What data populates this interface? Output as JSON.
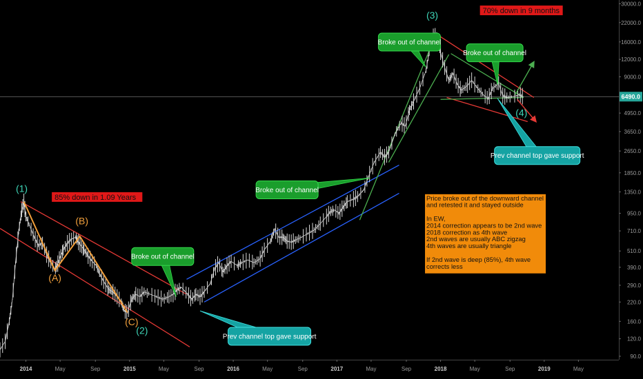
{
  "chart_data": {
    "type": "line",
    "scale": "log",
    "y_ticks": [
      90,
      120,
      160,
      220,
      290,
      390,
      510,
      710,
      950,
      1350,
      1850,
      2650,
      3650,
      4950,
      6490,
      9000,
      12000,
      16000,
      22000,
      30000
    ],
    "y_tick_labels": [
      "90.0",
      "120.0",
      "160.0",
      "220.0",
      "290.0",
      "390.0",
      "510.0",
      "710.0",
      "950.0",
      "1350.0",
      "1850.0",
      "2650.0",
      "3650.0",
      "4950.0",
      "",
      "9000.0",
      "12000.0",
      "16000.0",
      "22000.0",
      "30000.0"
    ],
    "ylim": [
      85,
      30500
    ],
    "x_ticks": [
      {
        "label": "2014",
        "t": 0.0,
        "bold": true
      },
      {
        "label": "May",
        "t": 0.33,
        "bold": false
      },
      {
        "label": "Sep",
        "t": 0.67,
        "bold": false
      },
      {
        "label": "2015",
        "t": 1.0,
        "bold": true
      },
      {
        "label": "May",
        "t": 1.33,
        "bold": false
      },
      {
        "label": "Sep",
        "t": 1.67,
        "bold": false
      },
      {
        "label": "2016",
        "t": 2.0,
        "bold": true
      },
      {
        "label": "May",
        "t": 2.33,
        "bold": false
      },
      {
        "label": "Sep",
        "t": 2.67,
        "bold": false
      },
      {
        "label": "2017",
        "t": 3.0,
        "bold": true
      },
      {
        "label": "May",
        "t": 3.33,
        "bold": false
      },
      {
        "label": "Sep",
        "t": 3.67,
        "bold": false
      },
      {
        "label": "2018",
        "t": 4.0,
        "bold": true
      },
      {
        "label": "May",
        "t": 4.33,
        "bold": false
      },
      {
        "label": "Sep",
        "t": 4.67,
        "bold": false
      },
      {
        "label": "2019",
        "t": 5.0,
        "bold": true
      },
      {
        "label": "May",
        "t": 5.33,
        "bold": false
      }
    ],
    "xlim": [
      -0.25,
      5.72
    ],
    "current_price": {
      "value": 6490,
      "label": "6490.0",
      "color": "#26a69a"
    },
    "price_series": {
      "color": "#d8d8d8",
      "points": [
        [
          -0.25,
          100
        ],
        [
          -0.2,
          115
        ],
        [
          -0.16,
          160
        ],
        [
          -0.13,
          230
        ],
        [
          -0.1,
          420
        ],
        [
          -0.07,
          700
        ],
        [
          -0.04,
          1000
        ],
        [
          -0.02,
          1150
        ],
        [
          0.0,
          900
        ],
        [
          0.04,
          760
        ],
        [
          0.08,
          640
        ],
        [
          0.12,
          560
        ],
        [
          0.16,
          580
        ],
        [
          0.2,
          480
        ],
        [
          0.24,
          420
        ],
        [
          0.28,
          380
        ],
        [
          0.3,
          400
        ],
        [
          0.33,
          460
        ],
        [
          0.36,
          520
        ],
        [
          0.4,
          580
        ],
        [
          0.44,
          620
        ],
        [
          0.48,
          640
        ],
        [
          0.5,
          600
        ],
        [
          0.53,
          560
        ],
        [
          0.56,
          520
        ],
        [
          0.6,
          470
        ],
        [
          0.64,
          430
        ],
        [
          0.68,
          400
        ],
        [
          0.72,
          340
        ],
        [
          0.76,
          300
        ],
        [
          0.8,
          270
        ],
        [
          0.84,
          260
        ],
        [
          0.88,
          240
        ],
        [
          0.92,
          220
        ],
        [
          0.95,
          190
        ],
        [
          0.98,
          185
        ],
        [
          1.02,
          230
        ],
        [
          1.06,
          250
        ],
        [
          1.1,
          240
        ],
        [
          1.14,
          260
        ],
        [
          1.2,
          250
        ],
        [
          1.26,
          240
        ],
        [
          1.32,
          230
        ],
        [
          1.38,
          240
        ],
        [
          1.42,
          250
        ],
        [
          1.46,
          270
        ],
        [
          1.5,
          280
        ],
        [
          1.56,
          250
        ],
        [
          1.6,
          230
        ],
        [
          1.64,
          250
        ],
        [
          1.68,
          240
        ],
        [
          1.72,
          260
        ],
        [
          1.78,
          300
        ],
        [
          1.82,
          380
        ],
        [
          1.86,
          420
        ],
        [
          1.9,
          360
        ],
        [
          1.94,
          400
        ],
        [
          1.98,
          430
        ],
        [
          2.04,
          400
        ],
        [
          2.08,
          420
        ],
        [
          2.14,
          440
        ],
        [
          2.2,
          420
        ],
        [
          2.26,
          450
        ],
        [
          2.3,
          520
        ],
        [
          2.36,
          600
        ],
        [
          2.4,
          730
        ],
        [
          2.44,
          640
        ],
        [
          2.48,
          640
        ],
        [
          2.52,
          600
        ],
        [
          2.56,
          590
        ],
        [
          2.6,
          610
        ],
        [
          2.66,
          640
        ],
        [
          2.72,
          680
        ],
        [
          2.78,
          720
        ],
        [
          2.84,
          800
        ],
        [
          2.9,
          900
        ],
        [
          2.94,
          980
        ],
        [
          2.98,
          1000
        ],
        [
          3.02,
          950
        ],
        [
          3.06,
          1050
        ],
        [
          3.1,
          1150
        ],
        [
          3.16,
          1200
        ],
        [
          3.2,
          1250
        ],
        [
          3.26,
          1400
        ],
        [
          3.3,
          1700
        ],
        [
          3.36,
          2200
        ],
        [
          3.42,
          2600
        ],
        [
          3.46,
          2400
        ],
        [
          3.5,
          2600
        ],
        [
          3.56,
          3500
        ],
        [
          3.62,
          4200
        ],
        [
          3.66,
          4000
        ],
        [
          3.7,
          5200
        ],
        [
          3.74,
          6000
        ],
        [
          3.8,
          7500
        ],
        [
          3.86,
          10000
        ],
        [
          3.9,
          15000
        ],
        [
          3.94,
          18500
        ],
        [
          3.97,
          16000
        ],
        [
          4.0,
          13500
        ],
        [
          4.04,
          10500
        ],
        [
          4.08,
          8500
        ],
        [
          4.12,
          9500
        ],
        [
          4.16,
          8000
        ],
        [
          4.2,
          7200
        ],
        [
          4.26,
          7800
        ],
        [
          4.3,
          8500
        ],
        [
          4.36,
          7400
        ],
        [
          4.42,
          6600
        ],
        [
          4.46,
          6300
        ],
        [
          4.5,
          7400
        ],
        [
          4.56,
          8100
        ],
        [
          4.6,
          6600
        ],
        [
          4.64,
          6400
        ],
        [
          4.7,
          6500
        ],
        [
          4.76,
          6700
        ],
        [
          4.8,
          6490
        ]
      ]
    },
    "lines": [
      {
        "name": "red-channel-top-2014",
        "color": "#e53935",
        "from": [
          -0.05,
          1150
        ],
        "to": [
          1.55,
          250
        ]
      },
      {
        "name": "red-channel-bottom-2014",
        "color": "#e53935",
        "from": [
          -0.25,
          740
        ],
        "to": [
          1.58,
          105
        ]
      },
      {
        "name": "blue-channel-top",
        "color": "#2962ff",
        "from": [
          1.55,
          320
        ],
        "to": [
          3.6,
          2100
        ]
      },
      {
        "name": "blue-channel-bottom",
        "color": "#2962ff",
        "from": [
          1.72,
          220
        ],
        "to": [
          3.6,
          1320
        ]
      },
      {
        "name": "green-channel-left",
        "color": "#4caf50",
        "from": [
          3.22,
          850
        ],
        "to": [
          3.96,
          18500
        ]
      },
      {
        "name": "green-channel-right",
        "color": "#4caf50",
        "from": [
          3.5,
          2200
        ],
        "to": [
          4.08,
          13000
        ]
      },
      {
        "name": "red-channel-top-2018",
        "color": "#e53935",
        "from": [
          3.96,
          18200
        ],
        "to": [
          4.9,
          6400
        ]
      },
      {
        "name": "red-channel-bottom-2018",
        "color": "#e53935",
        "from": [
          4.06,
          6400
        ],
        "to": [
          4.84,
          4300
        ]
      },
      {
        "name": "green-triangle-top",
        "color": "#4caf50",
        "from": [
          4.1,
          13200
        ],
        "to": [
          4.8,
          6400
        ]
      },
      {
        "name": "green-triangle-bottom",
        "color": "#4caf50",
        "from": [
          4.0,
          6200
        ],
        "to": [
          4.8,
          6400
        ]
      }
    ],
    "abc_path": {
      "color": "#f2a03c",
      "points": [
        [
          -0.02,
          1150
        ],
        [
          0.28,
          370
        ],
        [
          0.52,
          650
        ],
        [
          0.98,
          185
        ]
      ]
    },
    "wave_labels": [
      {
        "text": "(1)",
        "t": -0.04,
        "v": 1350,
        "style": "teal"
      },
      {
        "text": "(2)",
        "t": 1.12,
        "v": 130,
        "style": "teal"
      },
      {
        "text": "(3)",
        "t": 3.92,
        "v": 23500,
        "style": "teal"
      },
      {
        "text": "(4)",
        "t": 4.78,
        "v": 4700,
        "style": "teal"
      },
      {
        "text": "(A)",
        "t": 0.28,
        "v": 310,
        "style": "orange"
      },
      {
        "text": "(B)",
        "t": 0.54,
        "v": 790,
        "style": "orange"
      },
      {
        "text": "(C)",
        "t": 1.02,
        "v": 150,
        "style": "orange"
      }
    ],
    "red_labels": [
      {
        "text": "85% down in 1.09 Years",
        "t": 0.27,
        "v": 1200
      },
      {
        "text": "70% down in 9 months",
        "t": 4.4,
        "v": 26000
      }
    ],
    "callouts": [
      {
        "text": "Broke out of channel",
        "color": "#1a9e2c",
        "stroke": "#35d94c",
        "t": 1.02,
        "v": 540,
        "w": 90,
        "pointer": [
          1.45,
          240
        ]
      },
      {
        "text": "Broke out of channel",
        "color": "#1a9e2c",
        "stroke": "#35d94c",
        "t": 2.22,
        "v": 1620,
        "w": 90,
        "pointer": [
          3.32,
          1700
        ]
      },
      {
        "text": "Broke out of channel",
        "color": "#1a9e2c",
        "stroke": "#35d94c",
        "t": 3.4,
        "v": 18500,
        "w": 90,
        "pointer": [
          3.86,
          10500
        ]
      },
      {
        "text": "Broke out of channel",
        "color": "#1a9e2c",
        "stroke": "#35d94c",
        "t": 4.25,
        "v": 15500,
        "w": 82,
        "pointer": [
          4.55,
          7900
        ]
      },
      {
        "text": "Prev channel top gave support",
        "color": "#15a3a3",
        "stroke": "#3fe0e0",
        "t": 1.95,
        "v": 145,
        "w": 120,
        "pointer": [
          1.68,
          190
        ]
      },
      {
        "text": "Prev channel top gave support",
        "color": "#15a3a3",
        "stroke": "#3fe0e0",
        "t": 4.52,
        "v": 2850,
        "w": 124,
        "pointer": [
          4.55,
          6300
        ]
      }
    ],
    "note": {
      "color": "#f18b0a",
      "t": 3.85,
      "v": 1300,
      "lines": [
        "Price broke out of the downward channel",
        "and retested it and stayed outside",
        "",
        "In EW,",
        "2014 correction appears to be 2nd wave",
        "2018 correction as 4th wave",
        "2nd waves are usually ABC zigzag",
        "4th waves are usually triangle",
        "",
        "If 2nd wave is deep (85%), 4th wave",
        "corrects less"
      ]
    },
    "arrows": [
      {
        "name": "up-scenario-arrow",
        "color": "#4caf50",
        "from": [
          4.72,
          6700
        ],
        "to": [
          4.9,
          11500
        ]
      },
      {
        "name": "down-scenario-arrow",
        "color": "#e53935",
        "from": [
          4.74,
          6200
        ],
        "to": [
          4.92,
          4300
        ]
      }
    ]
  }
}
